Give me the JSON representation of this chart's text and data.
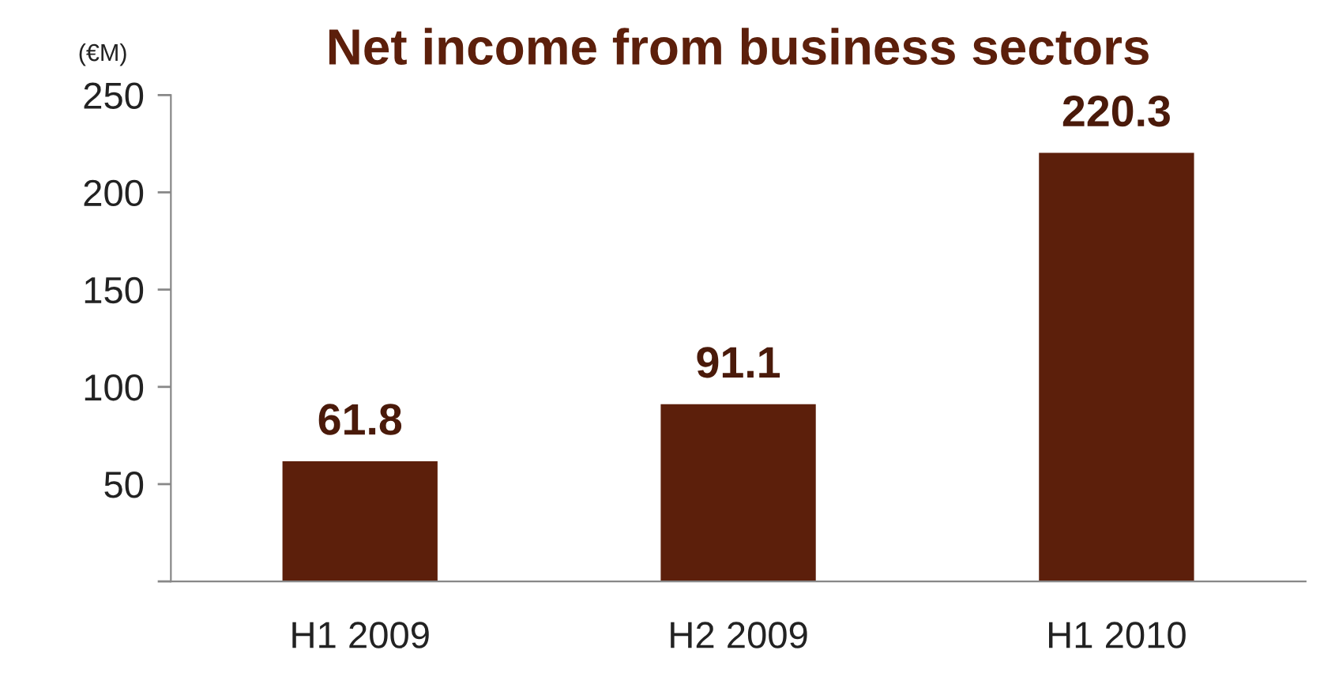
{
  "chart_data": {
    "type": "bar",
    "title": "Net income from business sectors",
    "ylabel": "(€M)",
    "categories": [
      "H1 2009",
      "H2 2009",
      "H1 2010"
    ],
    "values": [
      61.8,
      91.1,
      220.3
    ],
    "color": "#5c1f0b",
    "ylim": [
      0,
      250
    ],
    "yticks": [
      {
        "value": 0,
        "label": null
      },
      50,
      100,
      150,
      200,
      250
    ],
    "data_labels": true,
    "grid": false
  }
}
